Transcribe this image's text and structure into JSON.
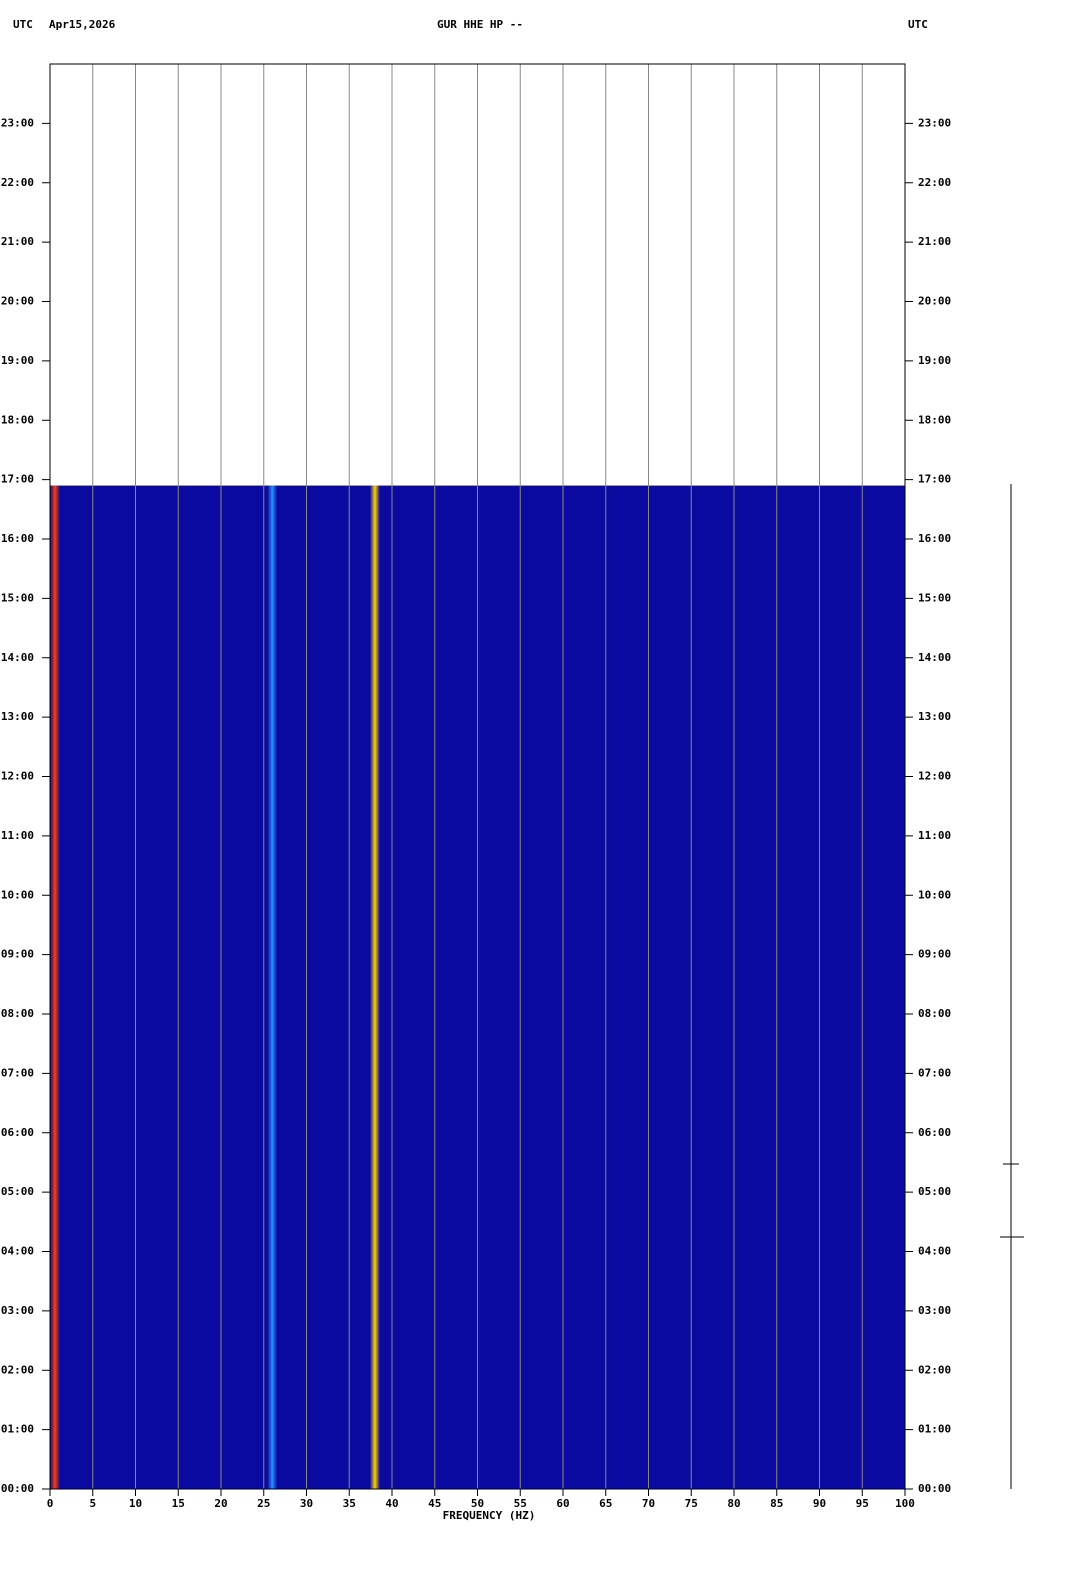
{
  "chart_data": {
    "type": "spectrogram",
    "header_left_zone": "UTC",
    "date": "Apr15,2026",
    "title": "GUR HHE HP --",
    "header_right_zone": "UTC",
    "xlabel": "FREQUENCY (HZ)",
    "xlim": [
      0,
      100
    ],
    "xticks": [
      0,
      5,
      10,
      15,
      20,
      25,
      30,
      35,
      40,
      45,
      50,
      55,
      60,
      65,
      70,
      75,
      80,
      85,
      90,
      95,
      100
    ],
    "ylim": [
      0,
      24
    ],
    "yticks": [
      {
        "value": 0,
        "label": "00:00"
      },
      {
        "value": 1,
        "label": "01:00"
      },
      {
        "value": 2,
        "label": "02:00"
      },
      {
        "value": 3,
        "label": "03:00"
      },
      {
        "value": 4,
        "label": "04:00"
      },
      {
        "value": 5,
        "label": "05:00"
      },
      {
        "value": 6,
        "label": "06:00"
      },
      {
        "value": 7,
        "label": "07:00"
      },
      {
        "value": 8,
        "label": "08:00"
      },
      {
        "value": 9,
        "label": "09:00"
      },
      {
        "value": 10,
        "label": "10:00"
      },
      {
        "value": 11,
        "label": "11:00"
      },
      {
        "value": 12,
        "label": "12:00"
      },
      {
        "value": 13,
        "label": "13:00"
      },
      {
        "value": 14,
        "label": "14:00"
      },
      {
        "value": 15,
        "label": "15:00"
      },
      {
        "value": 16,
        "label": "16:00"
      },
      {
        "value": 17,
        "label": "17:00"
      },
      {
        "value": 18,
        "label": "18:00"
      },
      {
        "value": 19,
        "label": "19:00"
      },
      {
        "value": 20,
        "label": "20:00"
      },
      {
        "value": 21,
        "label": "21:00"
      },
      {
        "value": 22,
        "label": "22:00"
      },
      {
        "value": 23,
        "label": "23:00"
      }
    ],
    "grid": true,
    "background_color": "#0a0aa0",
    "data_extent": [
      0,
      16.9
    ],
    "features": [
      {
        "frequency": 0.5,
        "color": "#ff4000"
      },
      {
        "frequency": 26,
        "color": "#2a8cff"
      },
      {
        "frequency": 38,
        "color": "#ffd200"
      }
    ]
  }
}
